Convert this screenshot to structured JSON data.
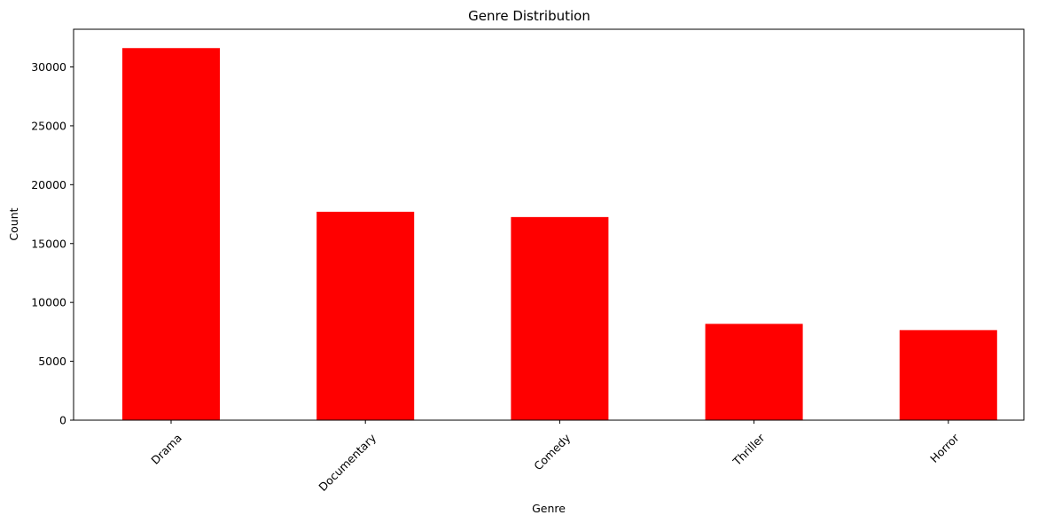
{
  "chart_data": {
    "type": "bar",
    "title": "Genre Distribution",
    "xlabel": "Genre",
    "ylabel": "Count",
    "categories": [
      "Drama",
      "Documentary",
      "Comedy",
      "Thriller",
      "Horror"
    ],
    "values": [
      31600,
      17700,
      17250,
      8180,
      7650
    ],
    "ylim": [
      0,
      33200
    ],
    "yticks": [
      0,
      5000,
      10000,
      15000,
      20000,
      25000,
      30000
    ],
    "ytick_labels": [
      "0",
      "5000",
      "10000",
      "15000",
      "20000",
      "25000",
      "30000"
    ],
    "bar_color": "#ff0000",
    "grid": false,
    "legend": "none",
    "xtick_rotation_deg": 45
  }
}
